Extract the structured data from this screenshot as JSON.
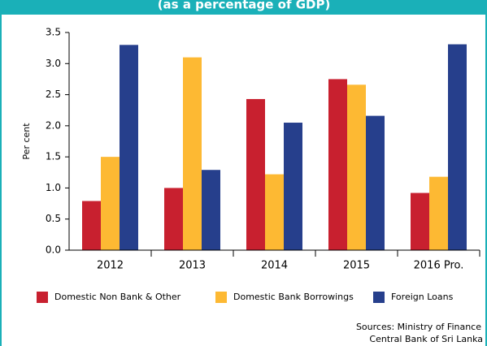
{
  "chart_data": {
    "type": "bar",
    "subtitle": "(as a percentage of GDP)",
    "y_label": "Per cent",
    "categories": [
      "2012",
      "2013",
      "2014",
      "2015",
      "2016 Pro."
    ],
    "series": [
      {
        "name": "Domestic Non Bank & Other",
        "color": "#c8202f",
        "values": [
          0.79,
          1.0,
          2.43,
          2.75,
          0.92
        ]
      },
      {
        "name": "Domestic Bank Borrowings",
        "color": "#fdb933",
        "values": [
          1.5,
          3.1,
          1.22,
          2.66,
          1.18
        ]
      },
      {
        "name": "Foreign Loans",
        "color": "#263f8c",
        "values": [
          3.3,
          1.29,
          2.05,
          2.16,
          3.31
        ]
      }
    ],
    "ylim": [
      0,
      3.5
    ],
    "yticks": [
      {
        "value": 0,
        "label": "0.0"
      },
      0.5,
      {
        "value": 1,
        "label": "1.0"
      },
      1.5,
      {
        "value": 2,
        "label": "2.0"
      },
      2.5,
      {
        "value": 3,
        "label": "3.0"
      },
      3.5
    ],
    "legend": "bottom",
    "sources": [
      "Sources: Ministry of Finance",
      "Central Bank of Sri Lanka"
    ]
  }
}
